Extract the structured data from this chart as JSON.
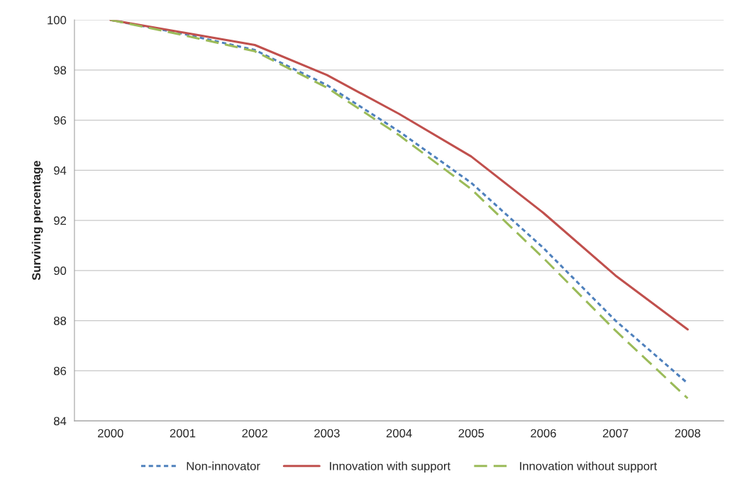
{
  "chart_data": {
    "type": "line",
    "ylabel": "Surviving percentage",
    "categories": [
      "2000",
      "2001",
      "2002",
      "2003",
      "2004",
      "2005",
      "2006",
      "2007",
      "2008"
    ],
    "series": [
      {
        "name": "Non-innovator",
        "color": "#4f81bd",
        "line_style": "dotted",
        "values": [
          100,
          99.45,
          98.8,
          97.4,
          95.55,
          93.5,
          90.9,
          88.0,
          85.5
        ]
      },
      {
        "name": "Innovation with support",
        "color": "#c0504d",
        "line_style": "solid",
        "values": [
          100,
          99.5,
          99.0,
          97.8,
          96.25,
          94.55,
          92.3,
          89.8,
          87.65
        ]
      },
      {
        "name": "Innovation without support",
        "color": "#9bbb59",
        "line_style": "dashed",
        "values": [
          100,
          99.4,
          98.75,
          97.3,
          95.4,
          93.25,
          90.5,
          87.6,
          84.9
        ]
      }
    ],
    "ylim": [
      84,
      100
    ],
    "yticks": [
      84,
      86,
      88,
      90,
      92,
      94,
      96,
      98,
      100
    ],
    "grid": "y",
    "legend": "bottom",
    "marker": "none"
  }
}
